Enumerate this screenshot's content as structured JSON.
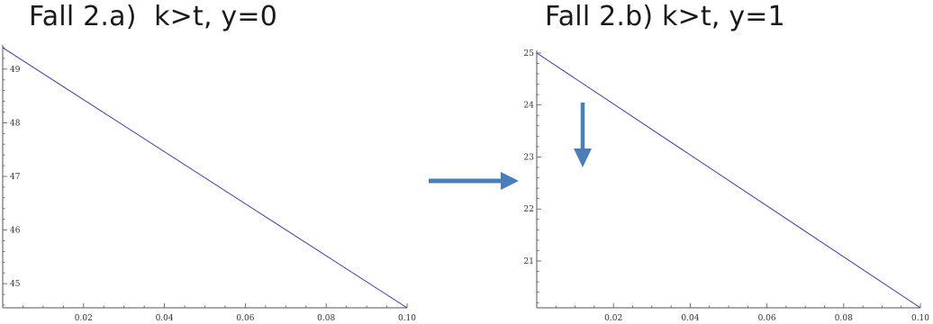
{
  "chart_data": [
    {
      "type": "line",
      "title": "Fall 2.a)  k>t, y=0",
      "xlabel": "",
      "ylabel": "",
      "xlim": [
        0,
        0.1
      ],
      "ylim": [
        44.55,
        49.45
      ],
      "x_ticks": [
        "0.02",
        "0.04",
        "0.06",
        "0.08",
        "0.10"
      ],
      "y_ticks": [
        "45",
        "46",
        "47",
        "48",
        "49"
      ],
      "series": [
        {
          "x": [
            0,
            0.1
          ],
          "y": [
            49.4,
            44.55
          ]
        }
      ],
      "line_color": "#3a3aa6",
      "grid": false
    },
    {
      "type": "line",
      "title": "Fall 2.b) k>t, y=1",
      "xlabel": "",
      "ylabel": "",
      "xlim": [
        0,
        0.1
      ],
      "ylim": [
        20.1,
        25.05
      ],
      "x_ticks": [
        "0.02",
        "0.04",
        "0.06",
        "0.08",
        "0.10"
      ],
      "y_ticks": [
        "21",
        "22",
        "23",
        "24",
        "25"
      ],
      "series": [
        {
          "x": [
            0,
            0.1
          ],
          "y": [
            25.0,
            20.1
          ]
        }
      ],
      "line_color": "#3a3aa6",
      "grid": false
    }
  ],
  "annotations": {
    "arrow_color": "#4a7ebb"
  }
}
